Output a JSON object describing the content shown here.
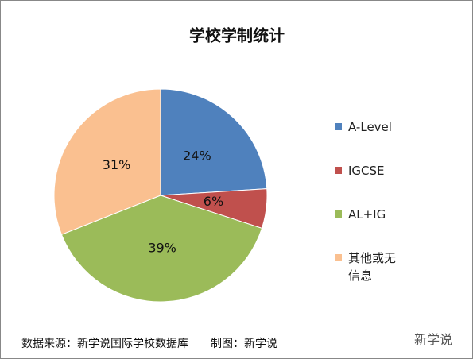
{
  "chart_data": {
    "type": "pie",
    "title": "学校学制统计",
    "categories": [
      "A-Level",
      "IGCSE",
      "AL+IG",
      "其他或无信息"
    ],
    "values": [
      24,
      6,
      39,
      31
    ],
    "value_labels": [
      "24%",
      "6%",
      "39%",
      "31%"
    ],
    "colors": [
      "#4f81bd",
      "#c0504d",
      "#9bbb59",
      "#fac090"
    ],
    "legend": "right",
    "source": "数据来源：新学说国际学校数据库　　制图：新学说",
    "watermark": "新学说"
  }
}
